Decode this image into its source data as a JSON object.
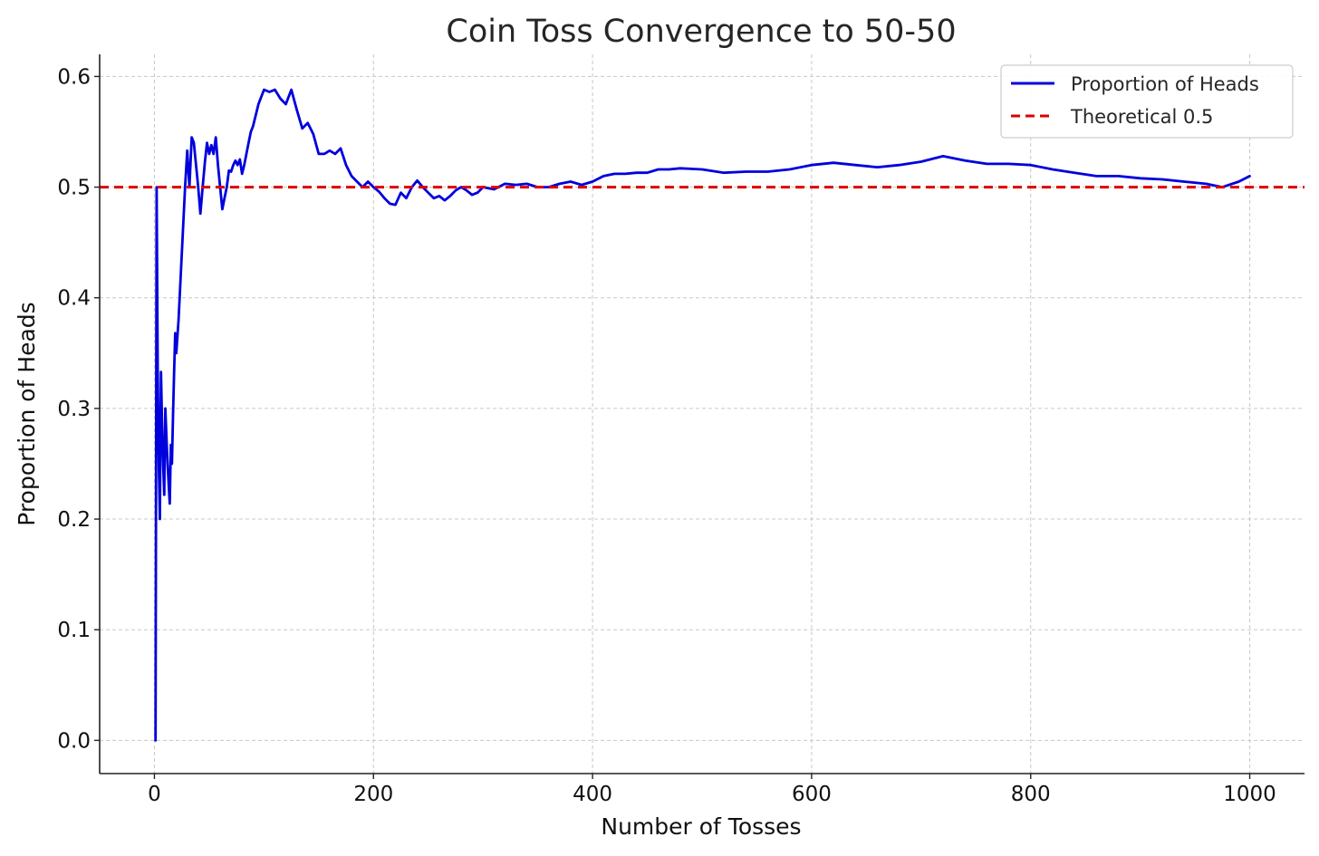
{
  "chart_data": {
    "type": "line",
    "title": "Coin Toss Convergence to 50-50",
    "xlabel": "Number of Tosses",
    "ylabel": "Proportion of Heads",
    "xlim": [
      -50,
      1050
    ],
    "ylim": [
      -0.03,
      0.62
    ],
    "grid": true,
    "legend_position": "top-right",
    "x_ticks": [
      0,
      200,
      400,
      600,
      800,
      1000
    ],
    "x_tick_labels": [
      "0",
      "200",
      "400",
      "600",
      "800",
      "1000"
    ],
    "y_ticks": [
      0.0,
      0.1,
      0.2,
      0.3,
      0.4,
      0.5,
      0.6
    ],
    "y_tick_labels": [
      "0.0",
      "0.1",
      "0.2",
      "0.3",
      "0.4",
      "0.5",
      "0.6"
    ],
    "series": [
      {
        "name": "Proportion of Heads",
        "color": "#0000dd",
        "style": "solid",
        "x": [
          1,
          2,
          3,
          4,
          5,
          6,
          7,
          8,
          9,
          10,
          11,
          12,
          13,
          14,
          15,
          16,
          17,
          18,
          19,
          20,
          22,
          24,
          26,
          28,
          30,
          32,
          34,
          36,
          38,
          40,
          42,
          44,
          46,
          48,
          50,
          52,
          54,
          56,
          58,
          60,
          62,
          64,
          66,
          68,
          70,
          72,
          74,
          76,
          78,
          80,
          82,
          84,
          86,
          88,
          90,
          95,
          100,
          105,
          110,
          115,
          120,
          125,
          130,
          135,
          140,
          145,
          150,
          155,
          160,
          165,
          170,
          175,
          180,
          185,
          190,
          195,
          200,
          205,
          210,
          215,
          220,
          225,
          230,
          235,
          240,
          245,
          250,
          255,
          260,
          265,
          270,
          275,
          280,
          285,
          290,
          295,
          300,
          310,
          320,
          330,
          340,
          350,
          360,
          370,
          380,
          390,
          400,
          410,
          420,
          430,
          440,
          450,
          460,
          470,
          480,
          500,
          520,
          540,
          560,
          580,
          600,
          620,
          640,
          660,
          680,
          700,
          720,
          740,
          760,
          780,
          800,
          820,
          840,
          860,
          880,
          900,
          920,
          940,
          960,
          975,
          990,
          1000
        ],
        "values": [
          0.0,
          0.5,
          0.333,
          0.25,
          0.2,
          0.333,
          0.286,
          0.25,
          0.222,
          0.3,
          0.273,
          0.25,
          0.231,
          0.214,
          0.267,
          0.25,
          0.294,
          0.333,
          0.368,
          0.35,
          0.38,
          0.42,
          0.46,
          0.5,
          0.533,
          0.5,
          0.545,
          0.54,
          0.52,
          0.5,
          0.476,
          0.5,
          0.522,
          0.54,
          0.53,
          0.538,
          0.53,
          0.545,
          0.52,
          0.5,
          0.48,
          0.49,
          0.5,
          0.515,
          0.514,
          0.52,
          0.524,
          0.52,
          0.525,
          0.512,
          0.52,
          0.53,
          0.54,
          0.55,
          0.555,
          0.575,
          0.588,
          0.586,
          0.588,
          0.58,
          0.575,
          0.588,
          0.57,
          0.553,
          0.558,
          0.548,
          0.53,
          0.53,
          0.533,
          0.53,
          0.535,
          0.52,
          0.51,
          0.505,
          0.5,
          0.505,
          0.5,
          0.496,
          0.49,
          0.485,
          0.484,
          0.495,
          0.49,
          0.5,
          0.506,
          0.5,
          0.495,
          0.49,
          0.492,
          0.488,
          0.492,
          0.497,
          0.5,
          0.497,
          0.493,
          0.495,
          0.5,
          0.498,
          0.503,
          0.502,
          0.503,
          0.5,
          0.5,
          0.503,
          0.505,
          0.502,
          0.505,
          0.51,
          0.512,
          0.512,
          0.513,
          0.513,
          0.516,
          0.516,
          0.517,
          0.516,
          0.513,
          0.514,
          0.514,
          0.516,
          0.52,
          0.522,
          0.52,
          0.518,
          0.52,
          0.523,
          0.528,
          0.524,
          0.521,
          0.521,
          0.52,
          0.516,
          0.513,
          0.51,
          0.51,
          0.508,
          0.507,
          0.505,
          0.503,
          0.5,
          0.505,
          0.51
        ]
      },
      {
        "name": "Theoretical 0.5",
        "color": "#dd0000",
        "style": "dashed",
        "constant_y": 0.5
      }
    ]
  }
}
